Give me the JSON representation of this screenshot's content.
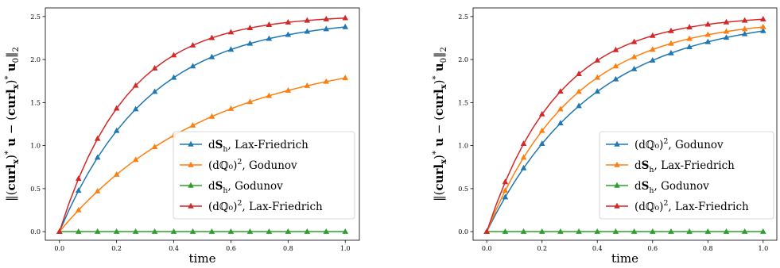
{
  "chart_data": [
    {
      "type": "line",
      "xlabel": "time",
      "ylabel": "‖(curlₓ)* u − (curlₓ)* u₀‖₂",
      "xlim": [
        0.0,
        1.0
      ],
      "ylim": [
        -0.1,
        2.6
      ],
      "xticks": [
        "0.0",
        "0.2",
        "0.4",
        "0.6",
        "0.8",
        "1.0"
      ],
      "yticks": [
        "0.0",
        "0.5",
        "1.0",
        "1.5",
        "2.0",
        "2.5"
      ],
      "grid": false,
      "legend_position": "lower-right",
      "x": [
        0.0,
        0.0333,
        0.0667,
        0.1,
        0.1333,
        0.1667,
        0.2,
        0.2333,
        0.2667,
        0.3,
        0.3333,
        0.3667,
        0.4,
        0.4333,
        0.4667,
        0.5,
        0.5333,
        0.5667,
        0.6,
        0.6333,
        0.6667,
        0.7,
        0.7333,
        0.7667,
        0.8,
        0.8333,
        0.8667,
        0.9,
        0.9333,
        0.9667,
        1.0
      ],
      "marker_every": 2,
      "series": [
        {
          "name": "dS_h, Lax-Friedrich",
          "color": "#1f77b4",
          "rate": 3.2,
          "amplitude": 2.48
        },
        {
          "name": "(dℚ₀)², Godunov",
          "color": "#ff7f0e",
          "rate": 1.9,
          "amplitude": 2.1
        },
        {
          "name": "dS_h, Godunov",
          "color": "#2ca02c",
          "rate": 0.0,
          "amplitude": 0.0
        },
        {
          "name": "(dℚ₀)², Lax-Friedrich",
          "color": "#d62728",
          "rate": 4.2,
          "amplitude": 2.52
        }
      ]
    },
    {
      "type": "line",
      "xlabel": "time",
      "ylabel": "‖(curlₓ)* u − (curlₓ)* u₀‖₂",
      "xlim": [
        0.0,
        1.0
      ],
      "ylim": [
        -0.1,
        2.6
      ],
      "xticks": [
        "0.0",
        "0.2",
        "0.4",
        "0.6",
        "0.8",
        "1.0"
      ],
      "yticks": [
        "0.0",
        "0.5",
        "1.0",
        "1.5",
        "2.0",
        "2.5"
      ],
      "grid": false,
      "legend_position": "lower-right",
      "x": [
        0.0,
        0.0333,
        0.0667,
        0.1,
        0.1333,
        0.1667,
        0.2,
        0.2333,
        0.2667,
        0.3,
        0.3333,
        0.3667,
        0.4,
        0.4333,
        0.4667,
        0.5,
        0.5333,
        0.5667,
        0.6,
        0.6333,
        0.6667,
        0.7,
        0.7333,
        0.7667,
        0.8,
        0.8333,
        0.8667,
        0.9,
        0.9333,
        0.9667,
        1.0
      ],
      "marker_every": 2,
      "series": [
        {
          "name": "(dℚ₀)², Godunov",
          "color": "#1f77b4",
          "rate": 2.6,
          "amplitude": 2.52
        },
        {
          "name": "dS_h, Lax-Friedrich",
          "color": "#ff7f0e",
          "rate": 3.2,
          "amplitude": 2.48
        },
        {
          "name": "dS_h, Godunov",
          "color": "#2ca02c",
          "rate": 0.0,
          "amplitude": 0.0
        },
        {
          "name": "(dℚ₀)², Lax-Friedrich",
          "color": "#d62728",
          "rate": 3.9,
          "amplitude": 2.52
        }
      ]
    }
  ]
}
